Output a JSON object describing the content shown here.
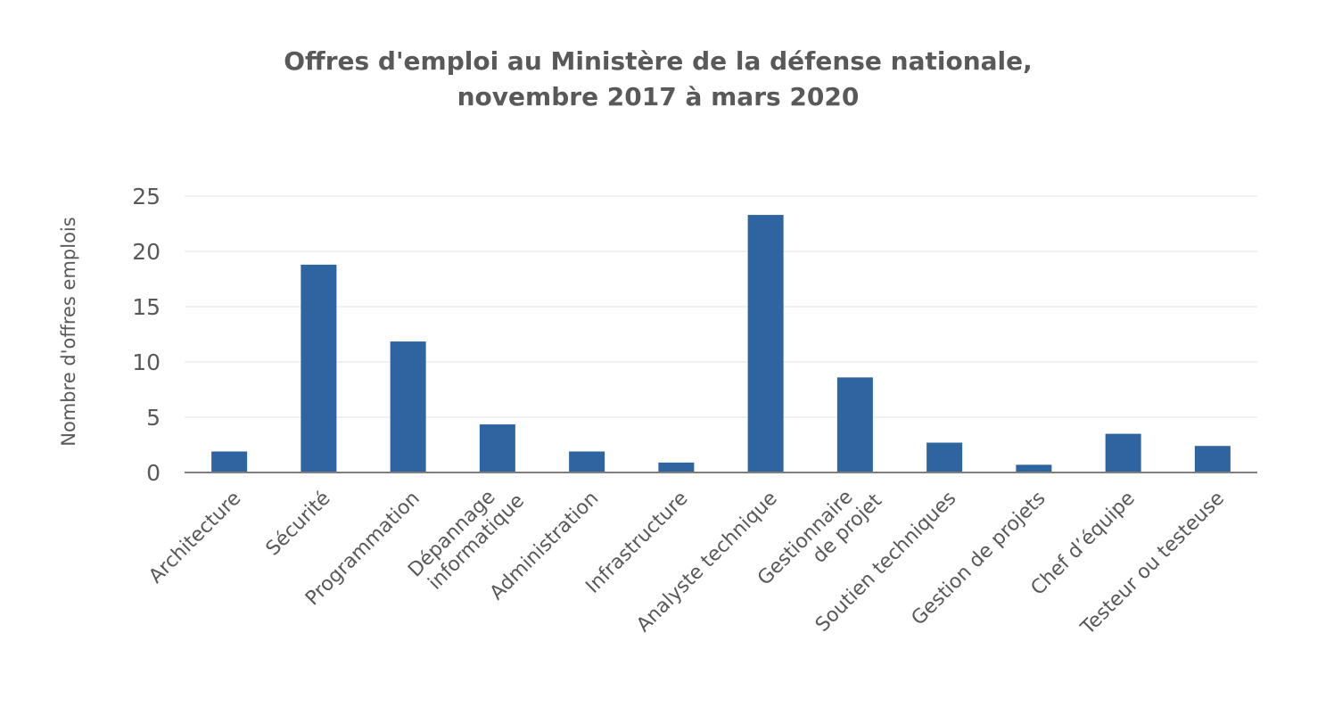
{
  "chart_data": {
    "type": "bar",
    "title": [
      "Offres d'emploi au Ministère de la défense nationale,",
      "novembre 2017 à mars 2020"
    ],
    "y_label": "Nombre d'offres emplois",
    "categories": [
      [
        "Architecture"
      ],
      [
        "Sécurité"
      ],
      [
        "Programmation"
      ],
      [
        "Dépannage",
        "informatique"
      ],
      [
        "Administration"
      ],
      [
        "Infrastructure"
      ],
      [
        "Analyste technique"
      ],
      [
        "Gestionnaire",
        "de projet"
      ],
      [
        "Soutien techniques"
      ],
      [
        "Gestion de projets"
      ],
      [
        "Chef d’équipe"
      ],
      [
        "Testeur ou testeuse"
      ]
    ],
    "values": [
      1.9,
      18.8,
      11.85,
      4.35,
      1.9,
      0.9,
      23.3,
      8.6,
      2.7,
      0.7,
      3.5,
      2.4
    ],
    "color": "#2e64a0",
    "ylim": [
      0,
      25
    ],
    "yticks": [
      0,
      5,
      10,
      15,
      20,
      25
    ],
    "grid": true
  }
}
